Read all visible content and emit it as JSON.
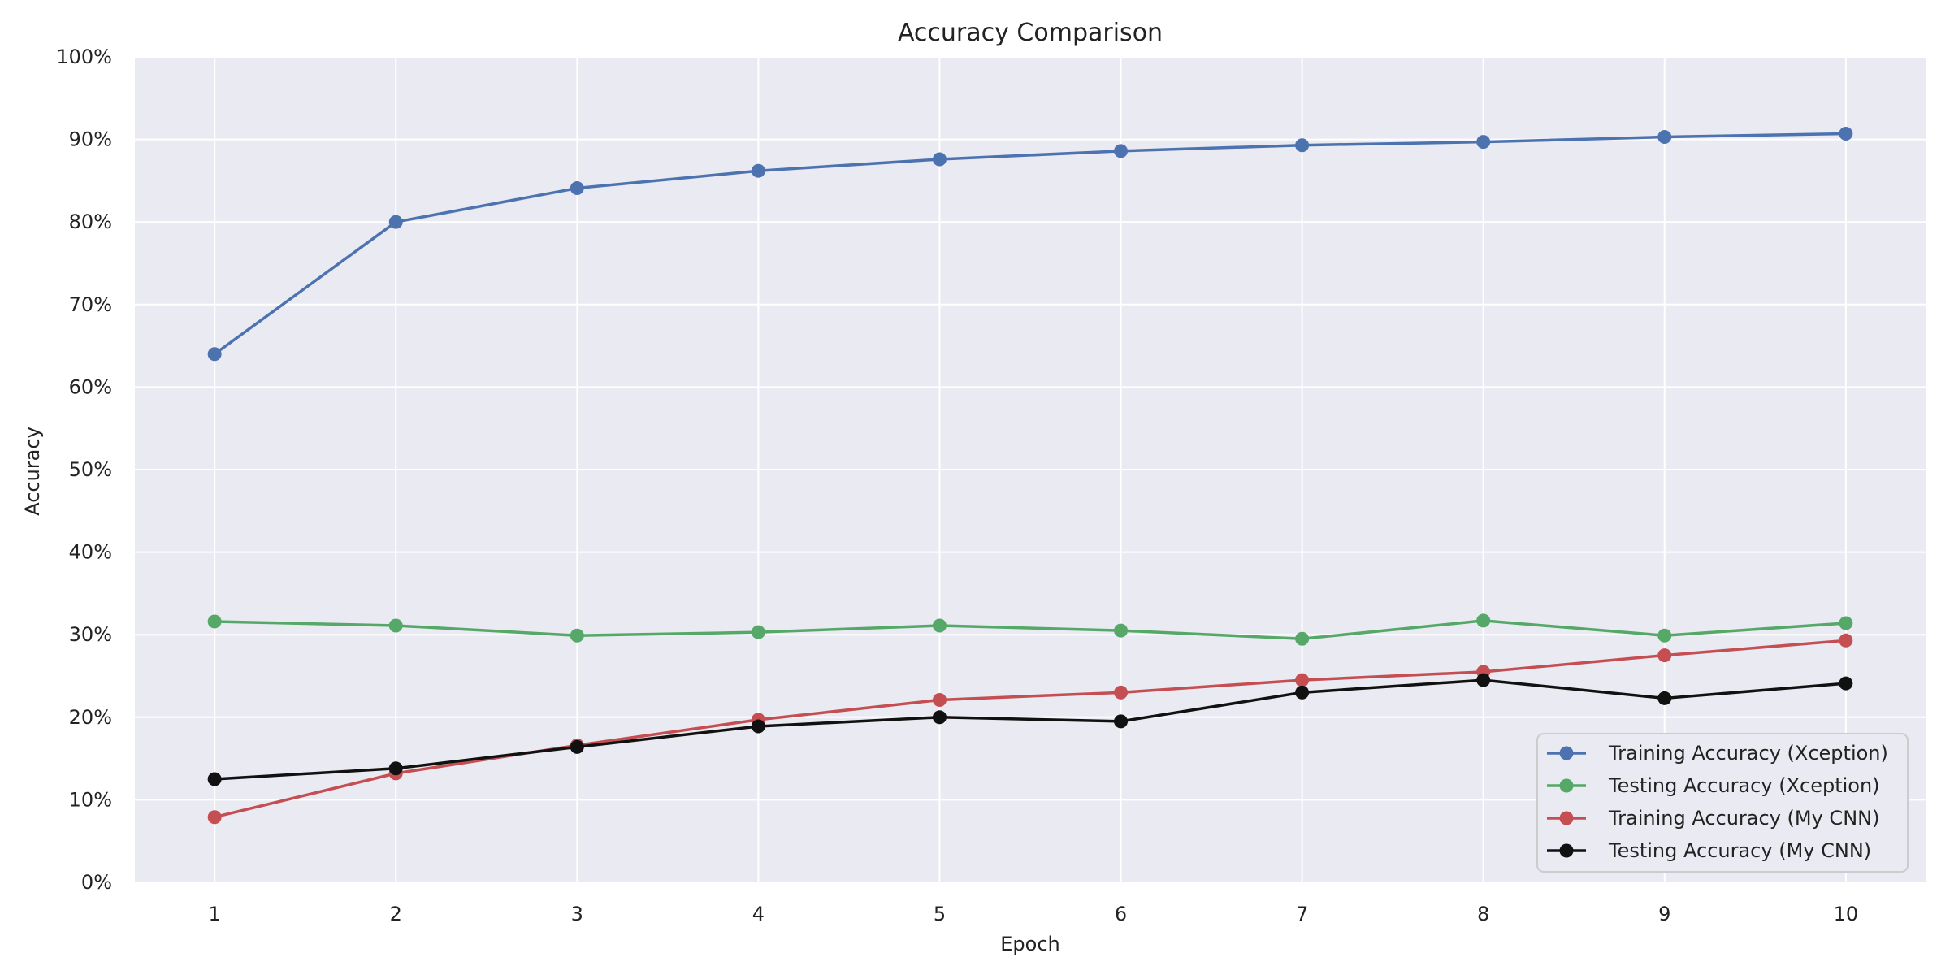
{
  "chart_data": {
    "type": "line",
    "title": "Accuracy Comparison",
    "xlabel": "Epoch",
    "ylabel": "Accuracy",
    "x": [
      1,
      2,
      3,
      4,
      5,
      6,
      7,
      8,
      9,
      10
    ],
    "xlim": [
      0.56,
      10.44
    ],
    "ylim": [
      0,
      1
    ],
    "x_tick_labels": [
      "1",
      "2",
      "3",
      "4",
      "5",
      "6",
      "7",
      "8",
      "9",
      "10"
    ],
    "y_ticks": [
      0,
      0.1,
      0.2,
      0.3,
      0.4,
      0.5,
      0.6,
      0.7,
      0.8,
      0.9,
      1.0
    ],
    "y_tick_labels": [
      "0%",
      "10%",
      "20%",
      "30%",
      "40%",
      "50%",
      "60%",
      "70%",
      "80%",
      "90%",
      "100%"
    ],
    "grid": true,
    "legend_position": "lower right",
    "series": [
      {
        "name": "Training Accuracy (Xception)",
        "color": "#4c72b0",
        "marker": "circle",
        "values": [
          0.64,
          0.8,
          0.841,
          0.862,
          0.876,
          0.886,
          0.893,
          0.897,
          0.903,
          0.907
        ]
      },
      {
        "name": "Testing Accuracy (Xception)",
        "color": "#55a868",
        "marker": "circle",
        "values": [
          0.316,
          0.311,
          0.299,
          0.303,
          0.311,
          0.305,
          0.295,
          0.317,
          0.299,
          0.314
        ]
      },
      {
        "name": "Training Accuracy (My CNN)",
        "color": "#c44e52",
        "marker": "circle",
        "values": [
          0.079,
          0.132,
          0.166,
          0.197,
          0.221,
          0.23,
          0.245,
          0.255,
          0.275,
          0.293
        ]
      },
      {
        "name": "Testing Accuracy (My CNN)",
        "color": "#111111",
        "marker": "circle",
        "values": [
          0.125,
          0.138,
          0.164,
          0.189,
          0.2,
          0.195,
          0.23,
          0.245,
          0.223,
          0.241
        ]
      }
    ]
  },
  "style": {
    "background_color": "#ffffff",
    "plot_background_color": "#eaeaf2",
    "grid_color": "#ffffff",
    "legend_border_color": "#cccccc",
    "text_color": "#222222"
  }
}
